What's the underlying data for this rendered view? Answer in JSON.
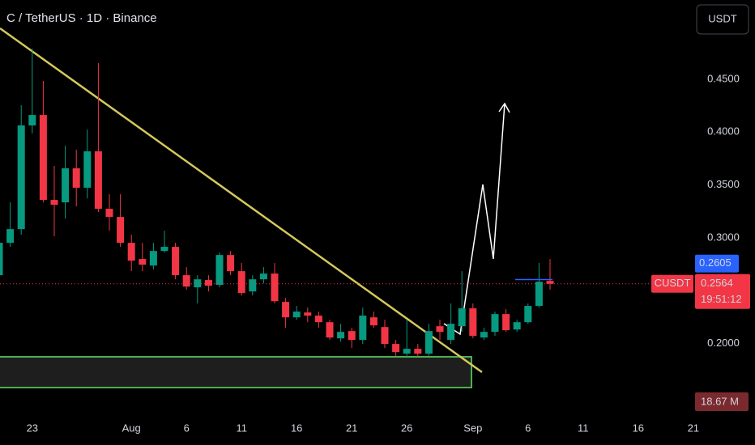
{
  "chart_data": {
    "type": "candlestick",
    "title": "C / TetherUS · 1D · Binance",
    "currency": "USDT",
    "symbol": "CUSDT",
    "x": [
      "Jul 20",
      "Jul 21",
      "Jul 22",
      "Jul 23",
      "Jul 24",
      "Jul 25",
      "Jul 26",
      "Jul 27",
      "Jul 28",
      "Jul 29",
      "Jul 30",
      "Jul 31",
      "Aug 1",
      "Aug 2",
      "Aug 3",
      "Aug 4",
      "Aug 5",
      "Aug 6",
      "Aug 7",
      "Aug 8",
      "Aug 9",
      "Aug 10",
      "Aug 11",
      "Aug 12",
      "Aug 13",
      "Aug 14",
      "Aug 15",
      "Aug 16",
      "Aug 17",
      "Aug 18",
      "Aug 19",
      "Aug 20",
      "Aug 21",
      "Aug 22",
      "Aug 23",
      "Aug 24",
      "Aug 25",
      "Aug 26",
      "Aug 27",
      "Aug 28",
      "Aug 29",
      "Aug 30",
      "Aug 31",
      "Sep 1",
      "Sep 2",
      "Sep 3",
      "Sep 4",
      "Sep 5",
      "Sep 6",
      "Sep 7",
      "Sep 8"
    ],
    "open": [
      0.2646,
      0.2952,
      0.3082,
      0.4063,
      0.4162,
      0.3358,
      0.3335,
      0.3657,
      0.3473,
      0.3818,
      0.3274,
      0.3197,
      0.2952,
      0.2799,
      0.2737,
      0.2875,
      0.2914,
      0.2646,
      0.2531,
      0.26,
      0.2554,
      0.2837,
      0.2684,
      0.2492,
      0.2607,
      0.2661,
      0.2393,
      0.2247,
      0.2293,
      0.2263,
      0.2201,
      0.2048,
      0.2117,
      0.2033,
      0.2247,
      0.2155,
      0.1995,
      0.1903,
      0.1949,
      0.1903,
      0.2163,
      0.2033,
      0.2163,
      0.2332,
      0.2056,
      0.2109,
      0.2278,
      0.2132,
      0.2201,
      0.2355,
      0.2592
    ],
    "high": [
      0.3029,
      0.3335,
      0.4254,
      0.479,
      0.4484,
      0.368,
      0.3871,
      0.3833,
      0.4024,
      0.4653,
      0.3412,
      0.3412,
      0.3029,
      0.2952,
      0.2952,
      0.3067,
      0.2952,
      0.2722,
      0.2646,
      0.2646,
      0.286,
      0.2875,
      0.2761,
      0.2646,
      0.2722,
      0.2761,
      0.2431,
      0.2355,
      0.2339,
      0.2301,
      0.2224,
      0.2186,
      0.2148,
      0.2339,
      0.2301,
      0.2224,
      0.2033,
      0.2224,
      0.1995,
      0.2186,
      0.2224,
      0.2378,
      0.2684,
      0.2378,
      0.2148,
      0.2301,
      0.2324,
      0.2224,
      0.2378,
      0.2761,
      0.2799
    ],
    "low": [
      0.2607,
      0.2914,
      0.3029,
      0.3986,
      0.3335,
      0.3013,
      0.3182,
      0.3297,
      0.3373,
      0.3243,
      0.3067,
      0.2914,
      0.2684,
      0.2684,
      0.2699,
      0.286,
      0.2607,
      0.2508,
      0.2378,
      0.2492,
      0.2531,
      0.2646,
      0.2454,
      0.2454,
      0.2569,
      0.2378,
      0.2148,
      0.2224,
      0.2201,
      0.2148,
      0.2033,
      0.2017,
      0.1956,
      0.1995,
      0.2148,
      0.1956,
      0.188,
      0.188,
      0.188,
      0.188,
      0.2033,
      0.1995,
      0.2109,
      0.2048,
      0.2033,
      0.2071,
      0.2109,
      0.2109,
      0.2186,
      0.2339,
      0.2508
    ],
    "close": [
      0.2952,
      0.3082,
      0.4063,
      0.4162,
      0.3358,
      0.3312,
      0.3657,
      0.3473,
      0.3818,
      0.3274,
      0.3197,
      0.2952,
      0.2783,
      0.2745,
      0.2875,
      0.2914,
      0.2646,
      0.2538,
      0.2607,
      0.2546,
      0.2837,
      0.2684,
      0.2477,
      0.2607,
      0.2661,
      0.24,
      0.2247,
      0.2301,
      0.2263,
      0.2201,
      0.2056,
      0.2109,
      0.2033,
      0.2263,
      0.2171,
      0.1995,
      0.1918,
      0.1949,
      0.1903,
      0.2117,
      0.2109,
      0.2186,
      0.2332,
      0.2071,
      0.2109,
      0.2278,
      0.2125,
      0.2201,
      0.2355,
      0.2584,
      0.2564
    ],
    "up_color": "#089981",
    "down_color": "#f23645",
    "ylim": [
      0.1345,
      0.525
    ],
    "yticks": [
      {
        "value": 0.2,
        "label": "0.2000"
      },
      {
        "value": 0.3,
        "label": "0.3000"
      },
      {
        "value": 0.35,
        "label": "0.3500"
      },
      {
        "value": 0.4,
        "label": "0.4000"
      },
      {
        "value": 0.45,
        "label": "0.4500"
      }
    ],
    "xticks": [
      {
        "value": "Jul 23",
        "label": "23"
      },
      {
        "value": "Aug 1",
        "label": "Aug"
      },
      {
        "value": "Aug 6",
        "label": "6"
      },
      {
        "value": "Aug 11",
        "label": "11"
      },
      {
        "value": "Aug 16",
        "label": "16"
      },
      {
        "value": "Aug 21",
        "label": "21"
      },
      {
        "value": "Aug 26",
        "label": "26"
      },
      {
        "value": "Sep 1",
        "label": "Sep"
      },
      {
        "value": "Sep 6",
        "label": "6"
      },
      {
        "value": "Sep 11",
        "label": "11"
      },
      {
        "value": "Sep 16",
        "label": "16"
      },
      {
        "value": "Sep 21",
        "label": "21"
      }
    ],
    "grid": false,
    "last_price": 0.2564,
    "countdown": "19:51:12",
    "line_price": 0.2605,
    "volume_label": "18.67 M"
  }
}
